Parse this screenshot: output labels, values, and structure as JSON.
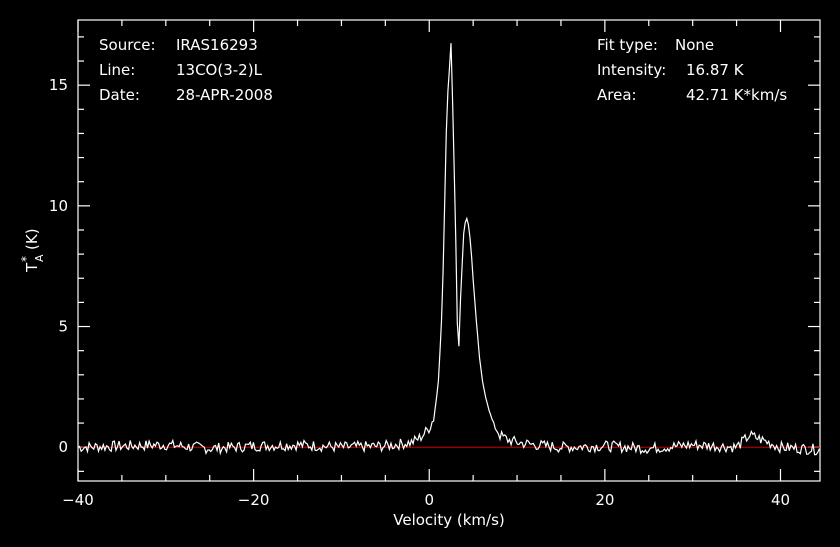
{
  "header": {
    "source_label": "Source:",
    "source_value": "IRAS16293",
    "line_label": "Line:",
    "line_value": "13CO(3-2)L",
    "date_label": "Date:",
    "date_value": "28-APR-2008",
    "fit_label": "Fit type:",
    "fit_value": "None",
    "intensity_label": "Intensity:",
    "intensity_value": "16.87 K",
    "area_label": "Area:",
    "area_value": "42.71 K*km/s"
  },
  "chart_data": {
    "type": "line",
    "xlabel": "Velocity (km/s)",
    "ylabel_main": "T",
    "ylabel_sub": "A",
    "ylabel_sup": "*",
    "ylabel_unit": "(K)",
    "xlim": [
      -40,
      44.5
    ],
    "ylim": [
      -1.4,
      17.7
    ],
    "xticks": [
      -40,
      -20,
      0,
      20,
      40
    ],
    "xtick_labels": [
      "−40",
      "−20",
      "0",
      "20",
      "40"
    ],
    "yticks": [
      0,
      5,
      10,
      15
    ],
    "ytick_labels": [
      "0",
      "5",
      "10",
      "15"
    ],
    "baseline": 0,
    "colors": {
      "spectrum": "#ffffff",
      "baseline": "#cc0000",
      "axes": "#ffffff"
    },
    "series": [
      {
        "x": [
          -40,
          -35,
          -30,
          -25,
          -20,
          -15,
          -10,
          -5,
          -2,
          -1,
          0,
          0.5,
          1,
          1.5,
          2,
          2.5,
          3,
          3.3,
          3.6,
          3.9,
          4.2,
          4.5,
          4.8,
          5.1,
          5.4,
          5.7,
          6,
          6.5,
          7,
          7.5,
          8,
          9,
          10,
          12,
          15,
          20,
          25,
          30,
          35,
          36.5,
          40,
          44.5
        ],
        "y": [
          0,
          0.05,
          0.1,
          -0.05,
          0.05,
          0.1,
          0,
          0.05,
          0.2,
          0.4,
          0.8,
          1.2,
          2.5,
          6,
          14,
          16.87,
          9,
          3.3,
          6.5,
          8.8,
          9.6,
          9.2,
          8,
          6.5,
          5,
          3.8,
          2.8,
          2,
          1.3,
          0.8,
          0.5,
          0.3,
          0.2,
          0.1,
          0,
          0.05,
          -0.05,
          0.1,
          0,
          0.5,
          0,
          -0.1
        ]
      }
    ]
  }
}
